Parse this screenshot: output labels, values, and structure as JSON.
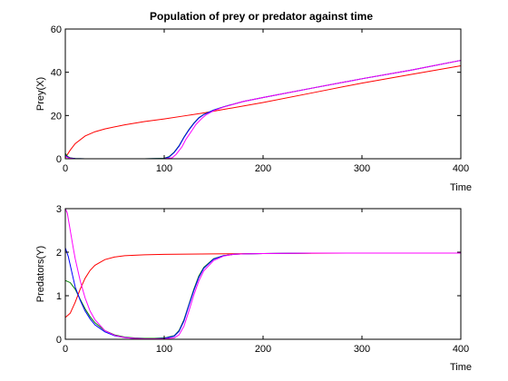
{
  "title": "Population of prey or predator against time",
  "chart_data": [
    {
      "type": "line",
      "title": "Population of prey or predator against time",
      "xlabel": "Time",
      "ylabel": "Prey(X)",
      "xlim": [
        0,
        400
      ],
      "ylim": [
        0,
        60
      ],
      "xticks": [
        0,
        100,
        200,
        300,
        400
      ],
      "yticks": [
        0,
        20,
        40,
        60
      ],
      "grid": false,
      "series": [
        {
          "color": "#ff0000",
          "x": [
            0,
            5,
            10,
            20,
            30,
            40,
            60,
            80,
            100,
            120,
            140,
            160,
            200,
            250,
            300,
            350,
            400
          ],
          "y": [
            0.5,
            4,
            7,
            10.5,
            12.5,
            13.8,
            15.7,
            17.2,
            18.4,
            19.8,
            21.2,
            22.8,
            26,
            30.5,
            35,
            39,
            43
          ]
        },
        {
          "color": "#008000",
          "x": [
            0,
            2,
            5,
            10,
            20,
            50,
            80,
            100,
            105,
            110,
            115,
            120,
            125,
            130,
            135,
            140,
            150,
            160,
            180,
            200,
            250,
            300,
            350,
            400
          ],
          "y": [
            2.5,
            1.2,
            0.4,
            0.1,
            0,
            0,
            0,
            0.2,
            1,
            3,
            6,
            10,
            13.5,
            16.5,
            19,
            20.5,
            22.5,
            24,
            26.5,
            28.3,
            32.7,
            37,
            41,
            45.5
          ]
        },
        {
          "color": "#0000ff",
          "x": [
            0,
            2,
            5,
            10,
            20,
            50,
            80,
            100,
            105,
            110,
            115,
            120,
            125,
            130,
            135,
            140,
            150,
            160,
            180,
            200,
            250,
            300,
            350,
            400
          ],
          "y": [
            1.8,
            0.8,
            0.3,
            0.1,
            0,
            0,
            0,
            0.1,
            0.8,
            2.8,
            5.8,
            9.8,
            13.3,
            16.3,
            18.8,
            20.4,
            22.5,
            24,
            26.5,
            28.3,
            32.7,
            37,
            41,
            45.5
          ]
        },
        {
          "color": "#ff00ff",
          "x": [
            0,
            2,
            5,
            10,
            20,
            50,
            80,
            100,
            108,
            112,
            118,
            122,
            128,
            132,
            138,
            142,
            150,
            160,
            180,
            200,
            250,
            300,
            350,
            400
          ],
          "y": [
            1.2,
            0.6,
            0.2,
            0,
            0,
            0,
            0,
            0,
            0.4,
            2,
            5.5,
            9,
            13,
            15.8,
            18.6,
            20.2,
            22.2,
            23.9,
            26.5,
            28.3,
            32.7,
            37,
            41,
            45.5
          ]
        }
      ]
    },
    {
      "type": "line",
      "title": "",
      "xlabel": "Time",
      "ylabel": "Predators(Y)",
      "xlim": [
        0,
        400
      ],
      "ylim": [
        0,
        3
      ],
      "xticks": [
        0,
        100,
        200,
        300,
        400
      ],
      "yticks": [
        0,
        1,
        2,
        3
      ],
      "grid": false,
      "series": [
        {
          "color": "#ff0000",
          "x": [
            0,
            5,
            10,
            15,
            20,
            25,
            30,
            40,
            50,
            60,
            80,
            100,
            150,
            200,
            300,
            400
          ],
          "y": [
            0.5,
            0.6,
            0.85,
            1.15,
            1.4,
            1.58,
            1.7,
            1.83,
            1.89,
            1.92,
            1.94,
            1.95,
            1.96,
            1.97,
            1.98,
            1.98
          ]
        },
        {
          "color": "#008000",
          "x": [
            0,
            5,
            10,
            15,
            20,
            25,
            30,
            40,
            50,
            60,
            70,
            80,
            90,
            100,
            110,
            115,
            120,
            125,
            130,
            135,
            140,
            150,
            160,
            170,
            180,
            200,
            250,
            300,
            400
          ],
          "y": [
            1.35,
            1.3,
            1.15,
            0.92,
            0.7,
            0.52,
            0.38,
            0.2,
            0.1,
            0.05,
            0.03,
            0.02,
            0.02,
            0.03,
            0.08,
            0.2,
            0.45,
            0.8,
            1.15,
            1.45,
            1.65,
            1.85,
            1.92,
            1.95,
            1.96,
            1.97,
            1.98,
            1.98,
            1.98
          ]
        },
        {
          "color": "#0000ff",
          "x": [
            0,
            3,
            5,
            8,
            10,
            15,
            20,
            25,
            30,
            40,
            50,
            60,
            70,
            80,
            90,
            100,
            110,
            115,
            120,
            125,
            130,
            135,
            140,
            150,
            160,
            170,
            180,
            200,
            250,
            300,
            400
          ],
          "y": [
            2.1,
            1.9,
            1.7,
            1.4,
            1.2,
            0.9,
            0.65,
            0.47,
            0.33,
            0.17,
            0.08,
            0.04,
            0.02,
            0.01,
            0.01,
            0.02,
            0.07,
            0.18,
            0.42,
            0.78,
            1.12,
            1.42,
            1.63,
            1.84,
            1.92,
            1.95,
            1.96,
            1.97,
            1.98,
            1.98,
            1.98
          ]
        },
        {
          "color": "#ff00ff",
          "x": [
            0,
            2,
            5,
            8,
            10,
            15,
            20,
            25,
            30,
            40,
            50,
            60,
            70,
            80,
            90,
            100,
            110,
            115,
            120,
            125,
            130,
            135,
            140,
            150,
            160,
            170,
            180,
            200,
            250,
            300,
            400
          ],
          "y": [
            3,
            2.9,
            2.5,
            2.1,
            1.85,
            1.35,
            0.95,
            0.65,
            0.45,
            0.2,
            0.09,
            0.04,
            0.02,
            0.01,
            0.01,
            0.01,
            0.03,
            0.1,
            0.3,
            0.65,
            1.02,
            1.34,
            1.57,
            1.81,
            1.91,
            1.95,
            1.96,
            1.97,
            1.98,
            1.98,
            1.98
          ]
        }
      ]
    }
  ]
}
